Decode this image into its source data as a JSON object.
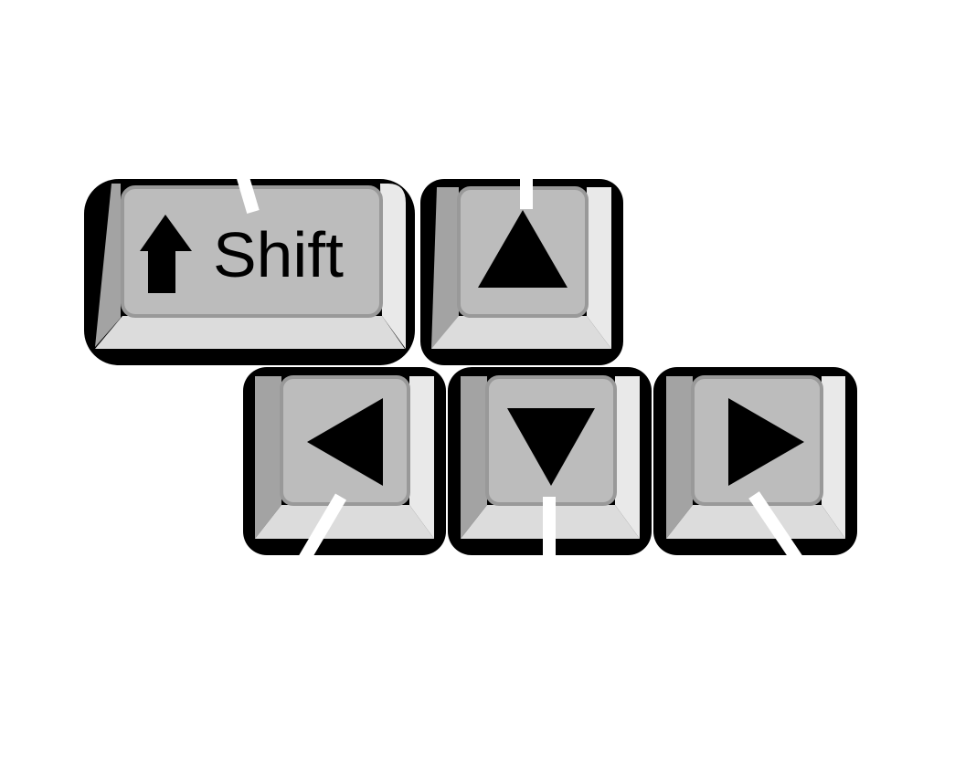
{
  "keys": {
    "shift": {
      "label": "Shift",
      "symbol": "up-arrow-block-icon"
    },
    "up": {
      "symbol": "up-triangle-icon"
    },
    "left": {
      "symbol": "left-triangle-icon"
    },
    "down": {
      "symbol": "down-triangle-icon"
    },
    "right": {
      "symbol": "right-triangle-icon"
    }
  },
  "colors": {
    "outline": "#000000",
    "top": "#bcbcbc",
    "top_border": "#999999",
    "left_bevel": "#a3a3a3",
    "right_bevel": "#e9e9e9",
    "bottom_bevel": "#dcdcdc",
    "symbol": "#000000",
    "leader": "#ffffff"
  }
}
